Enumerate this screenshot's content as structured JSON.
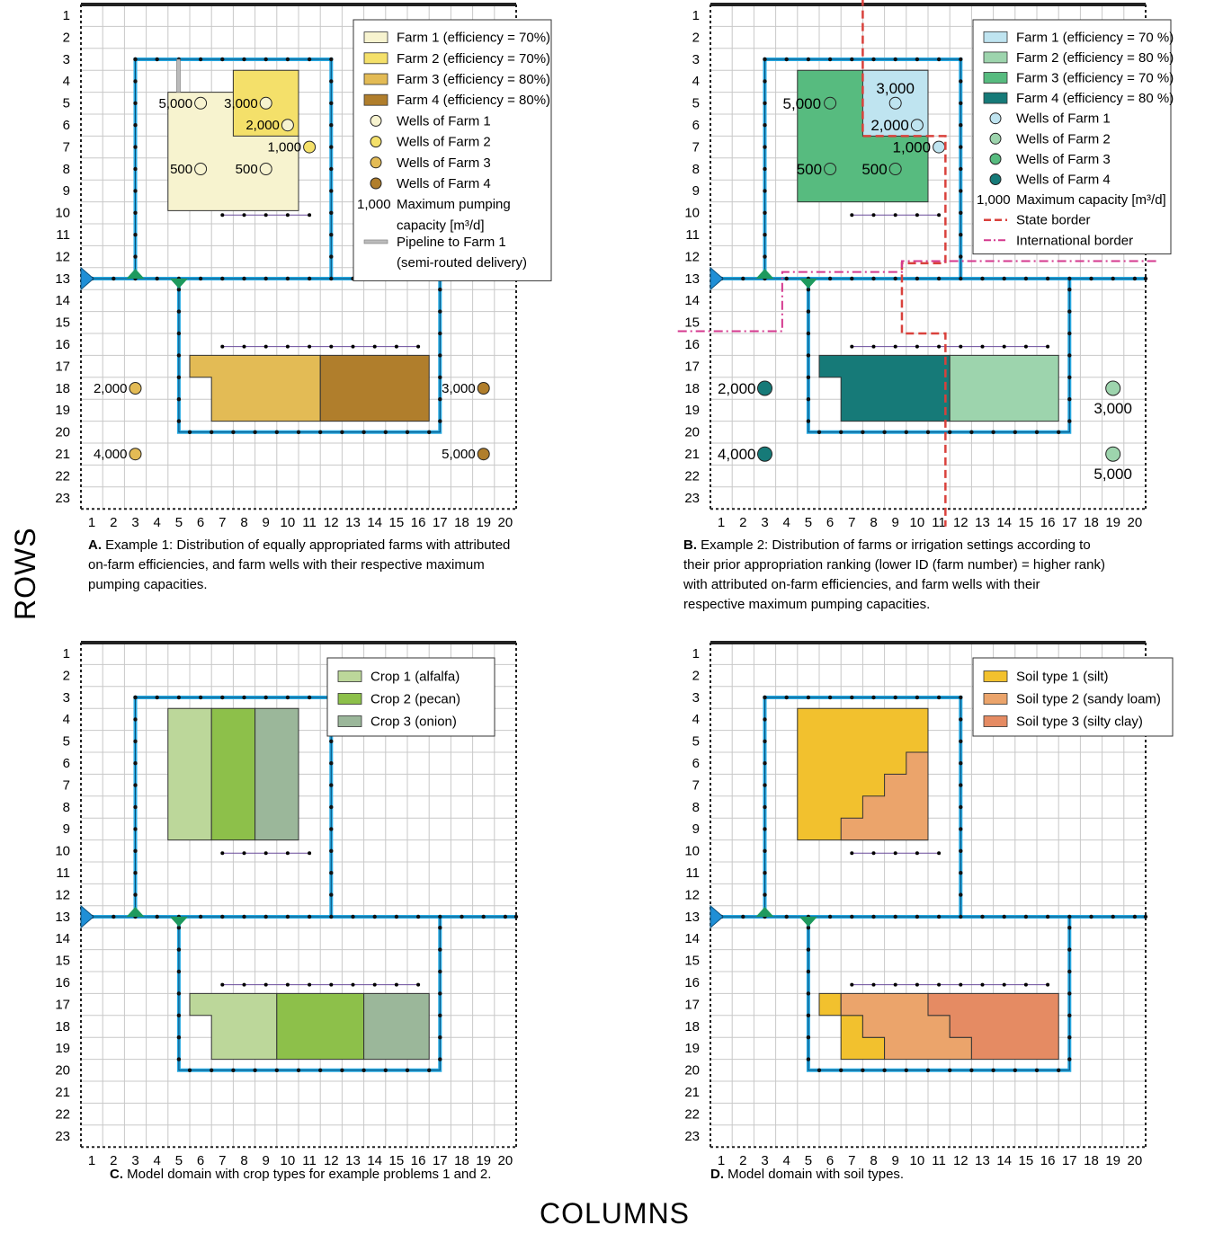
{
  "axis_titles": {
    "rows": "ROWS",
    "columns": "COLUMNS"
  },
  "row_labels": [
    "1",
    "2",
    "3",
    "4",
    "5",
    "6",
    "7",
    "8",
    "9",
    "10",
    "11",
    "12",
    "13",
    "14",
    "15",
    "16",
    "17",
    "18",
    "19",
    "20",
    "21",
    "22",
    "23"
  ],
  "col_labels": [
    "1",
    "2",
    "3",
    "4",
    "5",
    "6",
    "7",
    "8",
    "9",
    "10",
    "11",
    "12",
    "13",
    "14",
    "15",
    "16",
    "17",
    "18",
    "19",
    "20"
  ],
  "colors": {
    "farm1_a": "#f7f3cf",
    "farm2_a": "#f4e06a",
    "farm3_a": "#e3bb55",
    "farm4_a": "#b07e2c",
    "farm1_b": "#bfe4f0",
    "farm2_b": "#9dd4ad",
    "farm3_b": "#57bb7f",
    "farm4_b": "#167a78",
    "crop1": "#bcd79a",
    "crop2": "#8dc04a",
    "crop3": "#9bb79a",
    "soil1": "#f2c12e",
    "soil2": "#eba46b",
    "soil3": "#e58b63",
    "canal": "#27a9e1",
    "grid": "#c8c8c8",
    "border_state": "#d9413c",
    "border_intl": "#d4388e"
  },
  "panels": {
    "A": {
      "caption_letter": "A.",
      "caption_lines": [
        "Example 1: Distribution of equally appropriated farms with attributed",
        "on-farm efficiencies, and farm wells with their respective maximum",
        "pumping capacities."
      ],
      "legend": [
        {
          "label": "Farm 1 (efficiency = 70%)",
          "kind": "swatch",
          "color": "#f7f3cf"
        },
        {
          "label": "Farm 2 (efficiency = 70%)",
          "kind": "swatch",
          "color": "#f4e06a"
        },
        {
          "label": "Farm 3 (efficiency = 80%)",
          "kind": "swatch",
          "color": "#e3bb55"
        },
        {
          "label": "Farm 4 (efficiency = 80%)",
          "kind": "swatch",
          "color": "#b07e2c"
        },
        {
          "label": "Wells of Farm 1",
          "kind": "well",
          "color": "#f7f3cf"
        },
        {
          "label": "Wells of Farm 2",
          "kind": "well",
          "color": "#f4e06a"
        },
        {
          "label": "Wells of Farm 3",
          "kind": "well",
          "color": "#e3bb55"
        },
        {
          "label": "Wells of Farm 4",
          "kind": "well",
          "color": "#b07e2c"
        },
        {
          "label": "Maximum pumping",
          "label2": "capacity [m³/d]",
          "kind": "number",
          "number": "1,000"
        },
        {
          "label": "Pipeline to Farm 1",
          "label2": "(semi-routed delivery)",
          "kind": "pipe"
        }
      ],
      "wells": [
        {
          "label": "5,000",
          "farm": 1
        },
        {
          "label": "3,000",
          "farm": 1
        },
        {
          "label": "2,000",
          "farm": 1
        },
        {
          "label": "1,000",
          "farm": 2
        },
        {
          "label": "500",
          "farm": 1
        },
        {
          "label": "500",
          "farm": 1
        },
        {
          "label": "2,000",
          "farm": 3
        },
        {
          "label": "4,000",
          "farm": 3
        },
        {
          "label": "3,000",
          "farm": 4
        },
        {
          "label": "5,000",
          "farm": 4
        }
      ]
    },
    "B": {
      "caption_letter": "B.",
      "caption_lines": [
        "Example 2: Distribution of farms or irrigation settings according to",
        "their prior appropriation ranking (lower ID (farm number) = higher rank)",
        "with attributed on-farm efficiencies, and farm wells with their",
        "respective maximum pumping capacities."
      ],
      "legend": [
        {
          "label": "Farm 1 (efficiency = 70 %)",
          "kind": "swatch",
          "color": "#bfe4f0"
        },
        {
          "label": "Farm 2 (efficiency = 80 %)",
          "kind": "swatch",
          "color": "#9dd4ad"
        },
        {
          "label": "Farm 3 (efficiency = 70 %)",
          "kind": "swatch",
          "color": "#57bb7f"
        },
        {
          "label": "Farm 4 (efficiency = 80 %)",
          "kind": "swatch",
          "color": "#167a78"
        },
        {
          "label": "Wells of Farm 1",
          "kind": "well",
          "color": "#bfe4f0"
        },
        {
          "label": "Wells of Farm 2",
          "kind": "well",
          "color": "#9dd4ad"
        },
        {
          "label": "Wells of Farm 3",
          "kind": "well",
          "color": "#57bb7f"
        },
        {
          "label": "Wells of Farm 4",
          "kind": "well",
          "color": "#167a78"
        },
        {
          "label": "Maximum capacity [m³/d]",
          "kind": "number",
          "number": "1,000"
        },
        {
          "label": "State border",
          "kind": "state"
        },
        {
          "label": "International border",
          "kind": "intl"
        }
      ],
      "wells": [
        {
          "label": "5,000"
        },
        {
          "label": "3,000"
        },
        {
          "label": "2,000"
        },
        {
          "label": "1,000"
        },
        {
          "label": "500"
        },
        {
          "label": "500"
        },
        {
          "label": "2,000"
        },
        {
          "label": "4,000"
        },
        {
          "label": "3,000"
        },
        {
          "label": "5,000"
        }
      ]
    },
    "C": {
      "caption_letter": "C.",
      "caption_lines": [
        "Model domain with crop types for  example problems 1 and 2."
      ],
      "legend": [
        {
          "label": "Crop 1 (alfalfa)",
          "kind": "swatch",
          "color": "#bcd79a"
        },
        {
          "label": "Crop 2 (pecan)",
          "kind": "swatch",
          "color": "#8dc04a"
        },
        {
          "label": "Crop 3 (onion)",
          "kind": "swatch",
          "color": "#9bb79a"
        }
      ]
    },
    "D": {
      "caption_letter": "D.",
      "caption_lines": [
        "Model domain with soil types."
      ],
      "legend": [
        {
          "label": "Soil type 1 (silt)",
          "kind": "swatch",
          "color": "#f2c12e"
        },
        {
          "label": "Soil type 2 (sandy loam)",
          "kind": "swatch",
          "color": "#eba46b"
        },
        {
          "label": "Soil type 3 (silty clay)",
          "kind": "swatch",
          "color": "#e58b63"
        }
      ]
    }
  }
}
